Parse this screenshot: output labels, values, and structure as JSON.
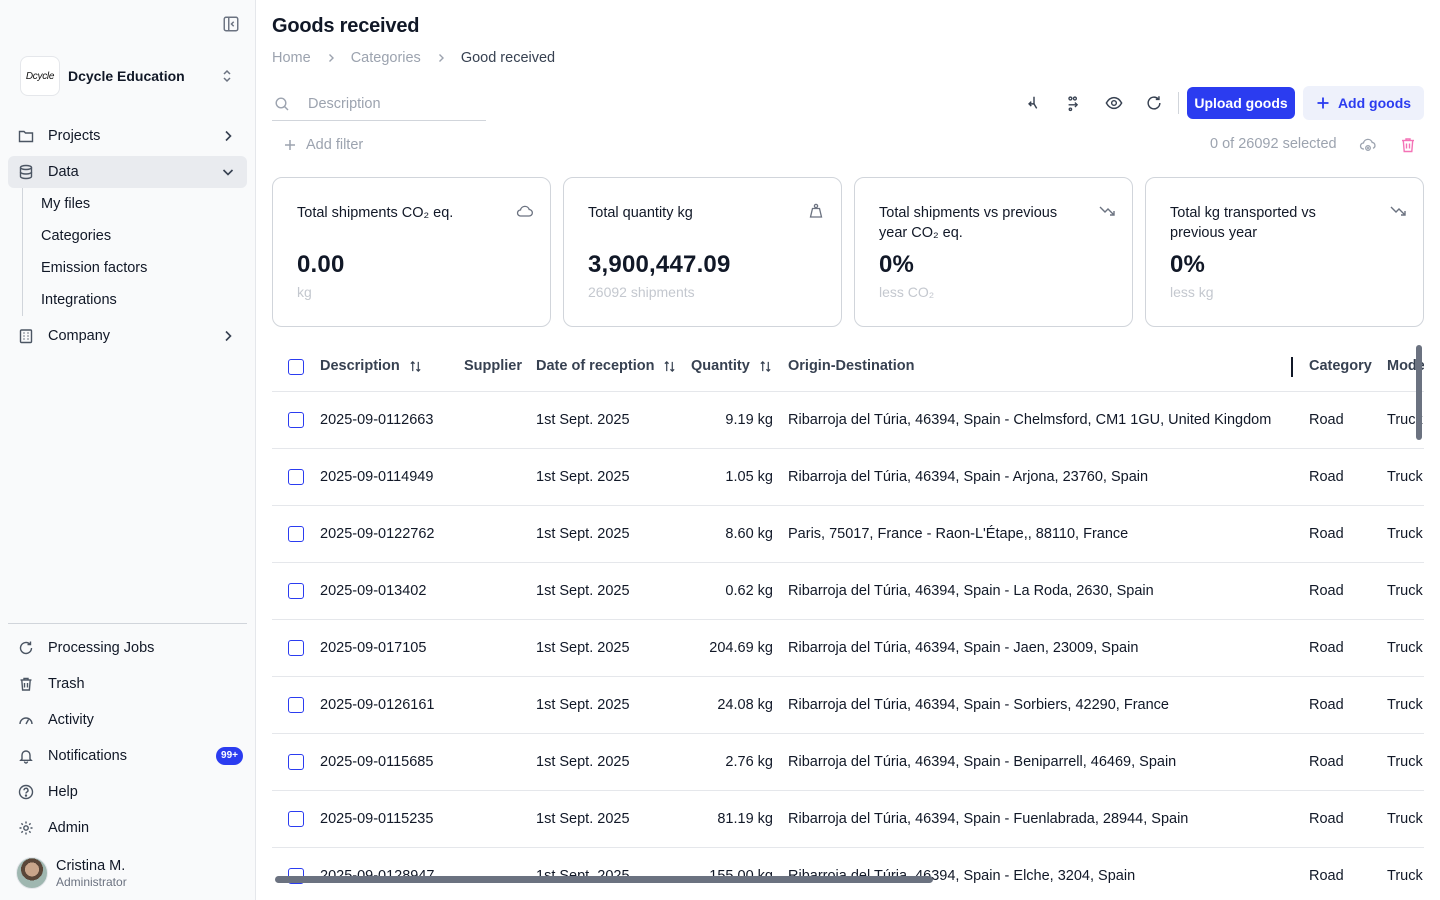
{
  "sidebar": {
    "org_logo_text": "Dcycle",
    "org_name": "Dcycle Education",
    "nav": {
      "projects": "Projects",
      "data": "Data",
      "company": "Company"
    },
    "data_sub": [
      "My files",
      "Categories",
      "Emission factors",
      "Integrations"
    ],
    "bottom": {
      "processing_jobs": "Processing Jobs",
      "trash": "Trash",
      "activity": "Activity",
      "notifications": "Notifications",
      "notifications_badge": "99+",
      "help": "Help",
      "admin": "Admin"
    },
    "user": {
      "name": "Cristina M.",
      "role": "Administrator"
    }
  },
  "header": {
    "title": "Goods received",
    "breadcrumb": [
      "Home",
      "Categories",
      "Good received"
    ]
  },
  "toolbar": {
    "search_placeholder": "Description",
    "upload_label": "Upload goods",
    "add_label": "Add goods",
    "add_filter_label": "Add filter",
    "selected_text": "0 of 26092 selected"
  },
  "cards": [
    {
      "title": "Total shipments CO₂ eq.",
      "value": "0.00",
      "sub": "kg",
      "icon": "cloud-icon"
    },
    {
      "title": "Total quantity kg",
      "value": "3,900,447.09",
      "sub": "26092 shipments",
      "icon": "weight-icon"
    },
    {
      "title": "Total shipments vs previous year CO₂ eq.",
      "value": "0%",
      "sub": "less CO₂",
      "icon": "trend-down-icon"
    },
    {
      "title": "Total kg transported vs previous year",
      "value": "0%",
      "sub": "less kg",
      "icon": "trend-down-icon"
    }
  ],
  "table": {
    "columns": [
      "Description",
      "Supplier",
      "Date of reception",
      "Quantity",
      "Origin-Destination",
      "Category",
      "Mode"
    ],
    "rows": [
      {
        "description": "2025-09-0112663",
        "supplier": "",
        "date": "1st Sept. 2025",
        "quantity": "9.19 kg",
        "route": "Ribarroja del Túria, 46394, Spain - Chelmsford, CM1 1GU, United Kingdom",
        "category": "Road",
        "mode": "Truck"
      },
      {
        "description": "2025-09-0114949",
        "supplier": "",
        "date": "1st Sept. 2025",
        "quantity": "1.05 kg",
        "route": "Ribarroja del Túria, 46394, Spain - Arjona, 23760, Spain",
        "category": "Road",
        "mode": "Truck"
      },
      {
        "description": "2025-09-0122762",
        "supplier": "",
        "date": "1st Sept. 2025",
        "quantity": "8.60 kg",
        "route": "Paris, 75017, France - Raon-L'Étape,, 88110, France",
        "category": "Road",
        "mode": "Truck"
      },
      {
        "description": "2025-09-013402",
        "supplier": "",
        "date": "1st Sept. 2025",
        "quantity": "0.62 kg",
        "route": "Ribarroja del Túria, 46394, Spain - La Roda, 2630, Spain",
        "category": "Road",
        "mode": "Truck"
      },
      {
        "description": "2025-09-017105",
        "supplier": "",
        "date": "1st Sept. 2025",
        "quantity": "204.69 kg",
        "route": "Ribarroja del Túria, 46394, Spain - Jaen, 23009, Spain",
        "category": "Road",
        "mode": "Truck"
      },
      {
        "description": "2025-09-0126161",
        "supplier": "",
        "date": "1st Sept. 2025",
        "quantity": "24.08 kg",
        "route": "Ribarroja del Túria, 46394, Spain - Sorbiers, 42290, France",
        "category": "Road",
        "mode": "Truck"
      },
      {
        "description": "2025-09-0115685",
        "supplier": "",
        "date": "1st Sept. 2025",
        "quantity": "2.76 kg",
        "route": "Ribarroja del Túria, 46394, Spain - Beniparrell, 46469, Spain",
        "category": "Road",
        "mode": "Truck"
      },
      {
        "description": "2025-09-0115235",
        "supplier": "",
        "date": "1st Sept. 2025",
        "quantity": "81.19 kg",
        "route": "Ribarroja del Túria, 46394, Spain - Fuenlabrada, 28944, Spain",
        "category": "Road",
        "mode": "Truck"
      },
      {
        "description": "2025-09-0128947",
        "supplier": "",
        "date": "1st Sept. 2025",
        "quantity": "155.00 kg",
        "route": "Ribarroja del Túria, 46394, Spain - Elche, 3204, Spain",
        "category": "Road",
        "mode": "Truck"
      }
    ]
  },
  "colors": {
    "accent": "#2b3cf0",
    "danger": "#f472b6",
    "muted": "#9ca3af"
  }
}
